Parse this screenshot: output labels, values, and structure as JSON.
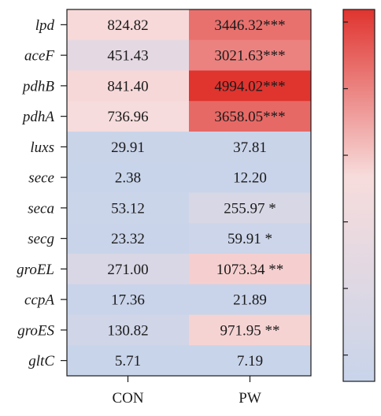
{
  "chart_data": {
    "type": "heatmap",
    "rows": [
      "lpd",
      "aceF",
      "pdhB",
      "pdhA",
      "luxs",
      "sece",
      "seca",
      "secg",
      "groEL",
      "ccpA",
      "groES",
      "gltC"
    ],
    "columns": [
      "CON",
      "PW"
    ],
    "values": [
      [
        824.82,
        3446.32
      ],
      [
        451.43,
        3021.63
      ],
      [
        841.4,
        4994.02
      ],
      [
        736.96,
        3658.05
      ],
      [
        29.91,
        37.81
      ],
      [
        2.38,
        12.2
      ],
      [
        53.12,
        255.97
      ],
      [
        23.32,
        59.91
      ],
      [
        271.0,
        1073.34
      ],
      [
        17.36,
        21.89
      ],
      [
        130.82,
        971.95
      ],
      [
        5.71,
        7.19
      ]
    ],
    "labels": [
      [
        "824.82",
        "3446.32***"
      ],
      [
        "451.43",
        "3021.63***"
      ],
      [
        "841.40",
        "4994.02***"
      ],
      [
        "736.96",
        "3658.05***"
      ],
      [
        "29.91",
        "37.81"
      ],
      [
        "2.38",
        "12.20"
      ],
      [
        "53.12",
        "255.97  *"
      ],
      [
        "23.32",
        "59.91  *"
      ],
      [
        "271.00",
        "1073.34 **"
      ],
      [
        "17.36",
        "21.89"
      ],
      [
        "130.82",
        "971.95  **"
      ],
      [
        "5.71",
        "7.19"
      ]
    ],
    "colorscale": {
      "low": "#c8d4ea",
      "mid": "#f7dcdc",
      "high": "#e0342f"
    },
    "colorbar": {
      "ticks": 6
    },
    "title": "",
    "xlabel": "",
    "ylabel": ""
  }
}
